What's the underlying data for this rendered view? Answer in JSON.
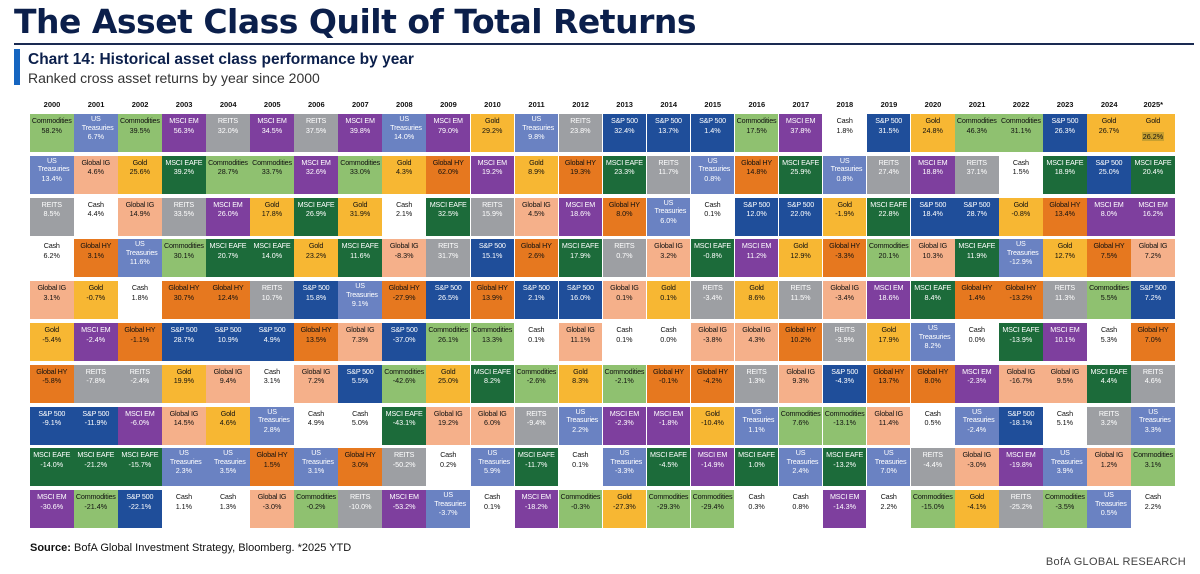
{
  "title": "The Asset Class Quilt of Total Returns",
  "subtitle": "Chart 14: Historical asset class performance by year",
  "description": "Ranked cross asset returns by year since 2000",
  "source_label": "Source:",
  "source_text": " BofA Global Investment Strategy, Bloomberg. *2025 YTD",
  "brand": "BofA GLOBAL RESEARCH",
  "colors": {
    "Commodities": "#8fc170",
    "US Treasuries": "#6a82c2",
    "MSCI EM": "#7e3f9e",
    "REITS": "#9d9fa3",
    "S&P 500": "#1f4e9a",
    "Gold": "#f7b733",
    "Global IG": "#f5b08a",
    "Global HY": "#e6781f",
    "MSCI EAFE": "#1c6b3a",
    "Cash": "#ffffff"
  },
  "chart_data": {
    "type": "table",
    "title": "Chart 14: Historical asset class performance by year",
    "years": [
      "2000",
      "2001",
      "2002",
      "2003",
      "2004",
      "2005",
      "2006",
      "2007",
      "2008",
      "2009",
      "2010",
      "2011",
      "2012",
      "2013",
      "2014",
      "2015",
      "2016",
      "2017",
      "2018",
      "2019",
      "2020",
      "2021",
      "2022",
      "2023",
      "2024",
      "2025*"
    ],
    "columns": [
      [
        [
          "Commodities",
          "58.2%"
        ],
        [
          "US Treasuries",
          "13.4%"
        ],
        [
          "REITS",
          "8.5%"
        ],
        [
          "Cash",
          "6.2%"
        ],
        [
          "Global IG",
          "3.1%"
        ],
        [
          "Gold",
          "-5.4%"
        ],
        [
          "Global HY",
          "-5.8%"
        ],
        [
          "S&P 500",
          "-9.1%"
        ],
        [
          "MSCI EAFE",
          "-14.0%"
        ],
        [
          "MSCI EM",
          "-30.6%"
        ]
      ],
      [
        [
          "US Treasuries",
          "6.7%"
        ],
        [
          "Global IG",
          "4.6%"
        ],
        [
          "Cash",
          "4.4%"
        ],
        [
          "Global HY",
          "3.1%"
        ],
        [
          "Gold",
          "-0.7%"
        ],
        [
          "MSCI EM",
          "-2.4%"
        ],
        [
          "REITS",
          "-7.8%"
        ],
        [
          "S&P 500",
          "-11.9%"
        ],
        [
          "MSCI EAFE",
          "-21.2%"
        ],
        [
          "Commodities",
          "-21.4%"
        ]
      ],
      [
        [
          "Commodities",
          "39.5%"
        ],
        [
          "Gold",
          "25.6%"
        ],
        [
          "Global IG",
          "14.9%"
        ],
        [
          "US Treasuries",
          "11.6%"
        ],
        [
          "Cash",
          "1.8%"
        ],
        [
          "Global HY",
          "-1.1%"
        ],
        [
          "REITS",
          "-2.4%"
        ],
        [
          "MSCI EM",
          "-6.0%"
        ],
        [
          "MSCI EAFE",
          "-15.7%"
        ],
        [
          "S&P 500",
          "-22.1%"
        ]
      ],
      [
        [
          "MSCI EM",
          "56.3%"
        ],
        [
          "MSCI EAFE",
          "39.2%"
        ],
        [
          "REITS",
          "33.5%"
        ],
        [
          "Commodities",
          "30.1%"
        ],
        [
          "Global HY",
          "30.7%"
        ],
        [
          "S&P 500",
          "28.7%"
        ],
        [
          "Gold",
          "19.9%"
        ],
        [
          "Global IG",
          "14.5%"
        ],
        [
          "US Treasuries",
          "2.3%"
        ],
        [
          "Cash",
          "1.1%"
        ]
      ],
      [
        [
          "REITS",
          "32.0%"
        ],
        [
          "Commodities",
          "28.7%"
        ],
        [
          "MSCI EM",
          "26.0%"
        ],
        [
          "MSCI EAFE",
          "20.7%"
        ],
        [
          "Global HY",
          "12.4%"
        ],
        [
          "S&P 500",
          "10.9%"
        ],
        [
          "Global IG",
          "9.4%"
        ],
        [
          "Gold",
          "4.6%"
        ],
        [
          "US Treasuries",
          "3.5%"
        ],
        [
          "Cash",
          "1.3%"
        ]
      ],
      [
        [
          "MSCI EM",
          "34.5%"
        ],
        [
          "Commodities",
          "33.7%"
        ],
        [
          "Gold",
          "17.8%"
        ],
        [
          "MSCI EAFE",
          "14.0%"
        ],
        [
          "REITS",
          "10.7%"
        ],
        [
          "S&P 500",
          "4.9%"
        ],
        [
          "Cash",
          "3.1%"
        ],
        [
          "US Treasuries",
          "2.8%"
        ],
        [
          "Global HY",
          "1.5%"
        ],
        [
          "Global IG",
          "-3.0%"
        ]
      ],
      [
        [
          "REITS",
          "37.5%"
        ],
        [
          "MSCI EM",
          "32.6%"
        ],
        [
          "MSCI EAFE",
          "26.9%"
        ],
        [
          "Gold",
          "23.2%"
        ],
        [
          "S&P 500",
          "15.8%"
        ],
        [
          "Global HY",
          "13.5%"
        ],
        [
          "Global IG",
          "7.2%"
        ],
        [
          "Cash",
          "4.9%"
        ],
        [
          "US Treasuries",
          "3.1%"
        ],
        [
          "Commodities",
          "-0.2%"
        ]
      ],
      [
        [
          "MSCI EM",
          "39.8%"
        ],
        [
          "Commodities",
          "33.0%"
        ],
        [
          "Gold",
          "31.9%"
        ],
        [
          "MSCI EAFE",
          "11.6%"
        ],
        [
          "US Treasuries",
          "9.1%"
        ],
        [
          "Global IG",
          "7.3%"
        ],
        [
          "S&P 500",
          "5.5%"
        ],
        [
          "Cash",
          "5.0%"
        ],
        [
          "Global HY",
          "3.0%"
        ],
        [
          "REITS",
          "-10.0%"
        ]
      ],
      [
        [
          "US Treasuries",
          "14.0%"
        ],
        [
          "Gold",
          "4.3%"
        ],
        [
          "Cash",
          "2.1%"
        ],
        [
          "Global IG",
          "-8.3%"
        ],
        [
          "Global HY",
          "-27.9%"
        ],
        [
          "S&P 500",
          "-37.0%"
        ],
        [
          "Commodities",
          "-42.6%"
        ],
        [
          "MSCI EAFE",
          "-43.1%"
        ],
        [
          "REITS",
          "-50.2%"
        ],
        [
          "MSCI EM",
          "-53.2%"
        ]
      ],
      [
        [
          "MSCI EM",
          "79.0%"
        ],
        [
          "Global HY",
          "62.0%"
        ],
        [
          "MSCI EAFE",
          "32.5%"
        ],
        [
          "REITS",
          "31.7%"
        ],
        [
          "S&P 500",
          "26.5%"
        ],
        [
          "Commodities",
          "26.1%"
        ],
        [
          "Gold",
          "25.0%"
        ],
        [
          "Global IG",
          "19.2%"
        ],
        [
          "Cash",
          "0.2%"
        ],
        [
          "US Treasuries",
          "-3.7%"
        ]
      ],
      [
        [
          "Gold",
          "29.2%"
        ],
        [
          "MSCI EM",
          "19.2%"
        ],
        [
          "REITS",
          "15.9%"
        ],
        [
          "S&P 500",
          "15.1%"
        ],
        [
          "Global HY",
          "13.9%"
        ],
        [
          "Commodities",
          "13.3%"
        ],
        [
          "MSCI EAFE",
          "8.2%"
        ],
        [
          "Global IG",
          "6.0%"
        ],
        [
          "US Treasuries",
          "5.9%"
        ],
        [
          "Cash",
          "0.1%"
        ]
      ],
      [
        [
          "US Treasuries",
          "9.8%"
        ],
        [
          "Gold",
          "8.9%"
        ],
        [
          "Global IG",
          "4.5%"
        ],
        [
          "Global HY",
          "2.6%"
        ],
        [
          "S&P 500",
          "2.1%"
        ],
        [
          "Cash",
          "0.1%"
        ],
        [
          "Commodities",
          "-2.6%"
        ],
        [
          "REITS",
          "-9.4%"
        ],
        [
          "MSCI EAFE",
          "-11.7%"
        ],
        [
          "MSCI EM",
          "-18.2%"
        ]
      ],
      [
        [
          "REITS",
          "23.8%"
        ],
        [
          "Global HY",
          "19.3%"
        ],
        [
          "MSCI EM",
          "18.6%"
        ],
        [
          "MSCI EAFE",
          "17.9%"
        ],
        [
          "S&P 500",
          "16.0%"
        ],
        [
          "Global IG",
          "11.1%"
        ],
        [
          "Gold",
          "8.3%"
        ],
        [
          "US Treasuries",
          "2.2%"
        ],
        [
          "Cash",
          "0.1%"
        ],
        [
          "Commodities",
          "-0.3%"
        ]
      ],
      [
        [
          "S&P 500",
          "32.4%"
        ],
        [
          "MSCI EAFE",
          "23.3%"
        ],
        [
          "Global HY",
          "8.0%"
        ],
        [
          "REITS",
          "0.7%"
        ],
        [
          "Global IG",
          "0.1%"
        ],
        [
          "Cash",
          "0.1%"
        ],
        [
          "Commodities",
          "-2.1%"
        ],
        [
          "MSCI EM",
          "-2.3%"
        ],
        [
          "US Treasuries",
          "-3.3%"
        ],
        [
          "Gold",
          "-27.3%"
        ]
      ],
      [
        [
          "S&P 500",
          "13.7%"
        ],
        [
          "REITS",
          "11.7%"
        ],
        [
          "US Treasuries",
          "6.0%"
        ],
        [
          "Global IG",
          "3.2%"
        ],
        [
          "Gold",
          "0.1%"
        ],
        [
          "Cash",
          "0.0%"
        ],
        [
          "Global HY",
          "-0.1%"
        ],
        [
          "MSCI EM",
          "-1.8%"
        ],
        [
          "MSCI EAFE",
          "-4.5%"
        ],
        [
          "Commodities",
          "-29.3%"
        ]
      ],
      [
        [
          "S&P 500",
          "1.4%"
        ],
        [
          "US Treasuries",
          "0.8%"
        ],
        [
          "Cash",
          "0.1%"
        ],
        [
          "MSCI EAFE",
          "-0.8%"
        ],
        [
          "REITS",
          "-3.4%"
        ],
        [
          "Global IG",
          "-3.8%"
        ],
        [
          "Global HY",
          "-4.2%"
        ],
        [
          "Gold",
          "-10.4%"
        ],
        [
          "MSCI EM",
          "-14.9%"
        ],
        [
          "Commodities",
          "-29.4%"
        ]
      ],
      [
        [
          "Commodities",
          "17.5%"
        ],
        [
          "Global HY",
          "14.8%"
        ],
        [
          "S&P 500",
          "12.0%"
        ],
        [
          "MSCI EM",
          "11.2%"
        ],
        [
          "Gold",
          "8.6%"
        ],
        [
          "Global IG",
          "4.3%"
        ],
        [
          "REITS",
          "1.3%"
        ],
        [
          "US Treasuries",
          "1.1%"
        ],
        [
          "MSCI EAFE",
          "1.0%"
        ],
        [
          "Cash",
          "0.3%"
        ]
      ],
      [
        [
          "MSCI EM",
          "37.8%"
        ],
        [
          "MSCI EAFE",
          "25.9%"
        ],
        [
          "S&P 500",
          "22.0%"
        ],
        [
          "Gold",
          "12.9%"
        ],
        [
          "REITS",
          "11.5%"
        ],
        [
          "Global HY",
          "10.2%"
        ],
        [
          "Global IG",
          "9.3%"
        ],
        [
          "Commodities",
          "7.6%"
        ],
        [
          "US Treasuries",
          "2.4%"
        ],
        [
          "Cash",
          "0.8%"
        ]
      ],
      [
        [
          "Cash",
          "1.8%"
        ],
        [
          "US Treasuries",
          "0.8%"
        ],
        [
          "Gold",
          "-1.9%"
        ],
        [
          "Global HY",
          "-3.3%"
        ],
        [
          "Global IG",
          "-3.4%"
        ],
        [
          "REITS",
          "-3.9%"
        ],
        [
          "S&P 500",
          "-4.3%"
        ],
        [
          "Commodities",
          "-13.1%"
        ],
        [
          "MSCI EAFE",
          "-13.2%"
        ],
        [
          "MSCI EM",
          "-14.3%"
        ]
      ],
      [
        [
          "S&P 500",
          "31.5%"
        ],
        [
          "REITS",
          "27.4%"
        ],
        [
          "MSCI EAFE",
          "22.8%"
        ],
        [
          "Commodities",
          "20.1%"
        ],
        [
          "MSCI EM",
          "18.6%"
        ],
        [
          "Gold",
          "17.9%"
        ],
        [
          "Global HY",
          "13.7%"
        ],
        [
          "Global IG",
          "11.4%"
        ],
        [
          "US Treasuries",
          "7.0%"
        ],
        [
          "Cash",
          "2.2%"
        ]
      ],
      [
        [
          "Gold",
          "24.8%"
        ],
        [
          "MSCI EM",
          "18.8%"
        ],
        [
          "S&P 500",
          "18.4%"
        ],
        [
          "Global IG",
          "10.3%"
        ],
        [
          "MSCI EAFE",
          "8.4%"
        ],
        [
          "US Treasuries",
          "8.2%"
        ],
        [
          "Global HY",
          "8.0%"
        ],
        [
          "Cash",
          "0.5%"
        ],
        [
          "REITS",
          "-4.4%"
        ],
        [
          "Commodities",
          "-15.0%"
        ]
      ],
      [
        [
          "Commodities",
          "46.3%"
        ],
        [
          "REITS",
          "37.1%"
        ],
        [
          "S&P 500",
          "28.7%"
        ],
        [
          "MSCI EAFE",
          "11.9%"
        ],
        [
          "Global HY",
          "1.4%"
        ],
        [
          "Cash",
          "0.0%"
        ],
        [
          "MSCI EM",
          "-2.3%"
        ],
        [
          "US Treasuries",
          "-2.4%"
        ],
        [
          "Global IG",
          "-3.0%"
        ],
        [
          "Gold",
          "-4.1%"
        ]
      ],
      [
        [
          "Commodities",
          "31.1%"
        ],
        [
          "Cash",
          "1.5%"
        ],
        [
          "Gold",
          "-0.8%"
        ],
        [
          "US Treasuries",
          "-12.9%"
        ],
        [
          "Global HY",
          "-13.2%"
        ],
        [
          "MSCI EAFE",
          "-13.9%"
        ],
        [
          "Global IG",
          "-16.7%"
        ],
        [
          "S&P 500",
          "-18.1%"
        ],
        [
          "MSCI EM",
          "-19.8%"
        ],
        [
          "REITS",
          "-25.2%"
        ]
      ],
      [
        [
          "S&P 500",
          "26.3%"
        ],
        [
          "MSCI EAFE",
          "18.9%"
        ],
        [
          "Global HY",
          "13.4%"
        ],
        [
          "Gold",
          "12.7%"
        ],
        [
          "REITS",
          "11.3%"
        ],
        [
          "MSCI EM",
          "10.1%"
        ],
        [
          "Global IG",
          "9.5%"
        ],
        [
          "Cash",
          "5.1%"
        ],
        [
          "US Treasuries",
          "3.9%"
        ],
        [
          "Commodities",
          "-3.5%"
        ]
      ],
      [
        [
          "Gold",
          "26.7%"
        ],
        [
          "S&P 500",
          "25.0%"
        ],
        [
          "MSCI EM",
          "8.0%"
        ],
        [
          "Global HY",
          "7.5%"
        ],
        [
          "Commodities",
          "5.5%"
        ],
        [
          "Cash",
          "5.3%"
        ],
        [
          "MSCI EAFE",
          "4.4%"
        ],
        [
          "REITS",
          "3.2%"
        ],
        [
          "Global IG",
          "1.2%"
        ],
        [
          "US Treasuries",
          "0.5%"
        ]
      ],
      [
        [
          "Gold",
          "26.2%"
        ],
        [
          "MSCI EAFE",
          "20.4%"
        ],
        [
          "MSCI EM",
          "16.2%"
        ],
        [
          "Global IG",
          "7.2%"
        ],
        [
          "S&P 500",
          "7.2%"
        ],
        [
          "Global HY",
          "7.0%"
        ],
        [
          "REITS",
          "4.6%"
        ],
        [
          "US Treasuries",
          "3.3%"
        ],
        [
          "Commodities",
          "3.1%"
        ],
        [
          "Cash",
          "2.2%"
        ]
      ]
    ]
  }
}
